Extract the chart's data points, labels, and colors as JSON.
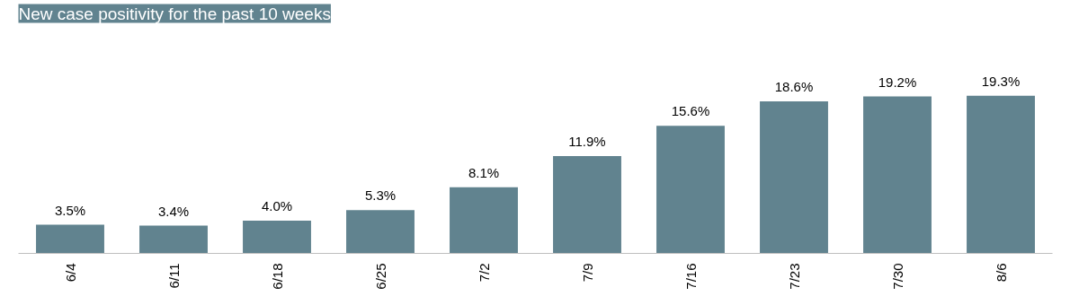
{
  "chart_data": {
    "type": "bar",
    "title": "New case positivity for the past 10 weeks",
    "categories": [
      "6/4",
      "6/11",
      "6/18",
      "6/25",
      "7/2",
      "7/9",
      "7/16",
      "7/23",
      "7/30",
      "8/6"
    ],
    "values": [
      3.5,
      3.4,
      4.0,
      5.3,
      8.1,
      11.9,
      15.6,
      18.6,
      19.2,
      19.3
    ],
    "value_labels": [
      "3.5%",
      "3.4%",
      "4.0%",
      "5.3%",
      "8.1%",
      "11.9%",
      "15.6%",
      "18.6%",
      "19.2%",
      "19.3%"
    ],
    "color": "#61838f",
    "grid": false,
    "tick_labels": "x"
  }
}
